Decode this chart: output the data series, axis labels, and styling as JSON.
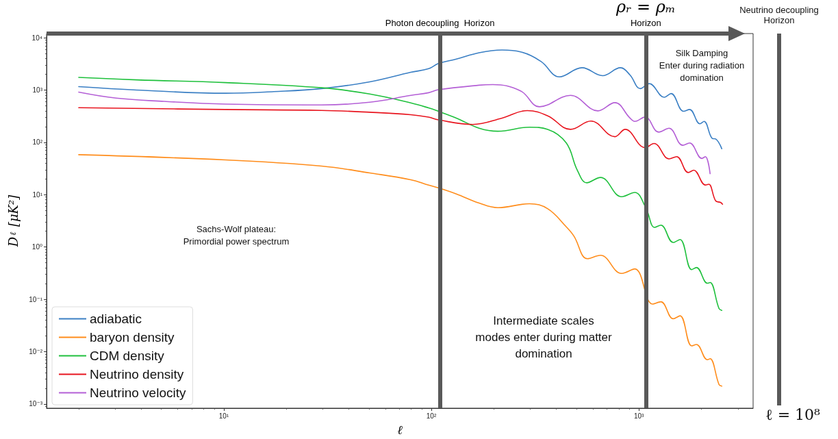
{
  "chart_data": {
    "type": "line",
    "xlabel": "ℓ",
    "ylabel": "D$_{ℓ}$ [μK²]",
    "log": "xy",
    "grid": false,
    "legend": "bottom left",
    "marker": "none",
    "line_style": "solid",
    "xlim": [
      1.4,
      3550
    ],
    "ylim": [
      0.00083,
      12000
    ],
    "xticks": [
      {
        "value": 10,
        "label": "10¹"
      },
      {
        "value": 100,
        "label": "10²"
      },
      {
        "value": 1000,
        "label": "10³"
      }
    ],
    "yticks": [
      {
        "value": 0.001,
        "label": "10⁻³"
      },
      {
        "value": 0.01,
        "label": "10⁻²"
      },
      {
        "value": 0.1,
        "label": "10⁻¹"
      },
      {
        "value": 1,
        "label": "10⁰"
      },
      {
        "value": 10,
        "label": "10¹"
      },
      {
        "value": 100,
        "label": "10²"
      },
      {
        "value": 1000,
        "label": "10³"
      },
      {
        "value": 10000,
        "label": "10⁴"
      }
    ],
    "series": [
      {
        "name": "adiabatic",
        "color": "#3a7fc4",
        "x": [
          2.0,
          3.81,
          10.2,
          17.4,
          29.6,
          50.5,
          79.6,
          97,
          108,
          132,
          170,
          219,
          269,
          337,
          414,
          532,
          668,
          815,
          906,
          1016,
          1122,
          1325,
          1429,
          1640,
          1755,
          1968,
          2060,
          2256,
          2343,
          2508
        ],
        "values": [
          1160,
          1000,
          869,
          933,
          1064,
          1436,
          2183,
          2553,
          3199,
          3894,
          5160,
          5820,
          5370,
          3526,
          1787,
          2672,
          1880,
          2672,
          1938,
          1064,
          1324,
          728,
          855,
          393,
          425,
          226,
          251,
          119,
          116,
          75.7
        ]
      },
      {
        "name": "baryon density",
        "color": "#ff8c1a",
        "x": [
          2.0,
          10.2,
          29.6,
          50.5,
          79.6,
          97,
          108,
          132,
          170,
          209,
          297,
          364,
          447,
          486,
          565,
          653,
          826,
          955,
          1079,
          1164,
          1276,
          1463,
          1578,
          1795,
          1893,
          2138,
          2203,
          2432,
          2508
        ],
        "values": [
          58.0,
          46.1,
          35.1,
          26.0,
          19.3,
          15.2,
          13.5,
          10.3,
          6.9,
          5.65,
          6.7,
          5.37,
          2.42,
          1.62,
          0.597,
          0.693,
          0.312,
          0.381,
          null,
          0.0811,
          0.0897,
          0.0425,
          0.0483,
          0.0129,
          0.0137,
          0.007,
          0.00733,
          0.00235,
          0.00219
        ]
      },
      {
        "name": "CDM density",
        "color": "#1ec03c",
        "x": [
          2.0,
          3.81,
          10.2,
          29.6,
          50.5,
          79.6,
          97,
          108,
          132,
          170,
          209,
          297,
          364,
          447,
          505,
          561,
          653,
          826,
          955,
          1079,
          1191,
          1276,
          1463,
          1578,
          1795,
          1893,
          2138,
          2203,
          2432,
          2508
        ],
        "values": [
          1741,
          1563,
          1387,
          1104,
          838,
          568,
          455,
          393,
          291,
          186,
          163,
          195,
          177,
          97.1,
          29.3,
          16.9,
          21.3,
          9.12,
          11.0,
          5.65,
          2.37,
          2.61,
          1.22,
          1.39,
          0.37,
          0.405,
          0.203,
          0.209,
          0.0665,
          0.0614
        ]
      },
      {
        "name": "Neutrino density",
        "color": "#e8141e",
        "x": [
          2.0,
          10.2,
          29.6,
          50.5,
          79.6,
          97,
          108,
          158,
          219,
          290,
          364,
          468,
          587,
          766,
          859,
          1071,
          1183,
          1397,
          1520,
          1729,
          1837,
          2090,
          2171,
          2343,
          2472,
          2529
        ],
        "values": [
          460,
          424,
          408,
          376,
          338,
          303,
          269,
          220,
          291,
          405,
          321,
          177,
          255,
          128,
          177,
          79.4,
          95.1,
          48.3,
          53.3,
          26.5,
          29.3,
          15.3,
          15.8,
          7.62,
          7.11,
          6.56
        ]
      },
      {
        "name": "Neutrino velocity",
        "color": "#b45fd6",
        "x": [
          2.0,
          3.03,
          5.16,
          10.2,
          29.6,
          50.5,
          79.6,
          97,
          108,
          170,
          198,
          269,
          332,
          468,
          634,
          766,
          906,
          955,
          1071,
          1247,
          1397,
          1626,
          1755,
          2012,
          2090,
          2203
        ],
        "values": [
          912,
          700,
          607,
          538,
          519,
          585,
          789,
          889,
          1012,
          1237,
          1270,
          964,
          479,
          789,
          400,
          573,
          291,
          251,
          305,
          157,
          186,
          87.9,
          97.1,
          49.2,
          53.3,
          25.2
        ]
      }
    ],
    "ref_lines": [
      {
        "axis": "x",
        "value": 110,
        "label": "Photon decoupling  Horizon",
        "color": "#595959"
      },
      {
        "axis": "x",
        "value": 1080,
        "label": "ρᵣ = ρₘ\nHorizon",
        "color": "#595959"
      }
    ],
    "annotations": [
      "Sachs-Wolf plateau:\nPrimordial power spectrum",
      "Intermediate scales\nmodes enter during matter\ndomination",
      "Silk Damping\nEnter during radiation\ndomination",
      "Neutrino decoupling\nHorizon",
      "ℓ = 10⁸"
    ]
  }
}
